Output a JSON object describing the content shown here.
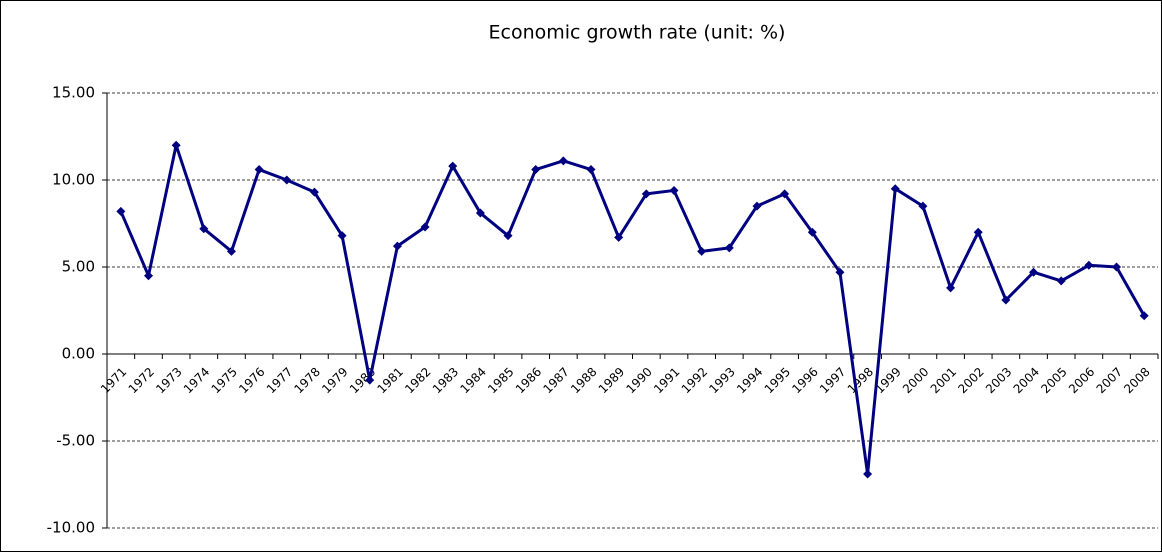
{
  "chart_data": {
    "type": "line",
    "title": "Economic growth rate (unit: %)",
    "categories": [
      "1971",
      "1972",
      "1973",
      "1974",
      "1975",
      "1976",
      "1977",
      "1978",
      "1979",
      "1980",
      "1981",
      "1982",
      "1983",
      "1984",
      "1985",
      "1986",
      "1987",
      "1988",
      "1989",
      "1990",
      "1991",
      "1992",
      "1993",
      "1994",
      "1995",
      "1996",
      "1997",
      "1998",
      "1999",
      "2000",
      "2001",
      "2002",
      "2003",
      "2004",
      "2005",
      "2006",
      "2007",
      "2008"
    ],
    "values": [
      8.2,
      4.5,
      12.0,
      7.2,
      5.9,
      10.6,
      10.0,
      9.3,
      6.8,
      -1.5,
      6.2,
      7.3,
      10.8,
      8.1,
      6.8,
      10.6,
      11.1,
      10.6,
      6.7,
      9.2,
      9.4,
      5.9,
      6.1,
      8.5,
      9.2,
      7.0,
      4.7,
      -6.9,
      9.5,
      8.5,
      3.8,
      7.0,
      3.1,
      4.7,
      4.2,
      5.1,
      5.0,
      2.2
    ],
    "color": "#000080",
    "ylim": [
      -10,
      15
    ],
    "yticks": [
      {
        "value": -10,
        "label": "-10.00"
      },
      {
        "value": -5,
        "label": "-5.00"
      },
      {
        "value": 0,
        "label": "0.00"
      },
      {
        "value": 5,
        "label": "5.00"
      },
      {
        "value": 10,
        "label": "10.00"
      },
      {
        "value": 15,
        "label": "15.00"
      }
    ],
    "grid": true
  }
}
